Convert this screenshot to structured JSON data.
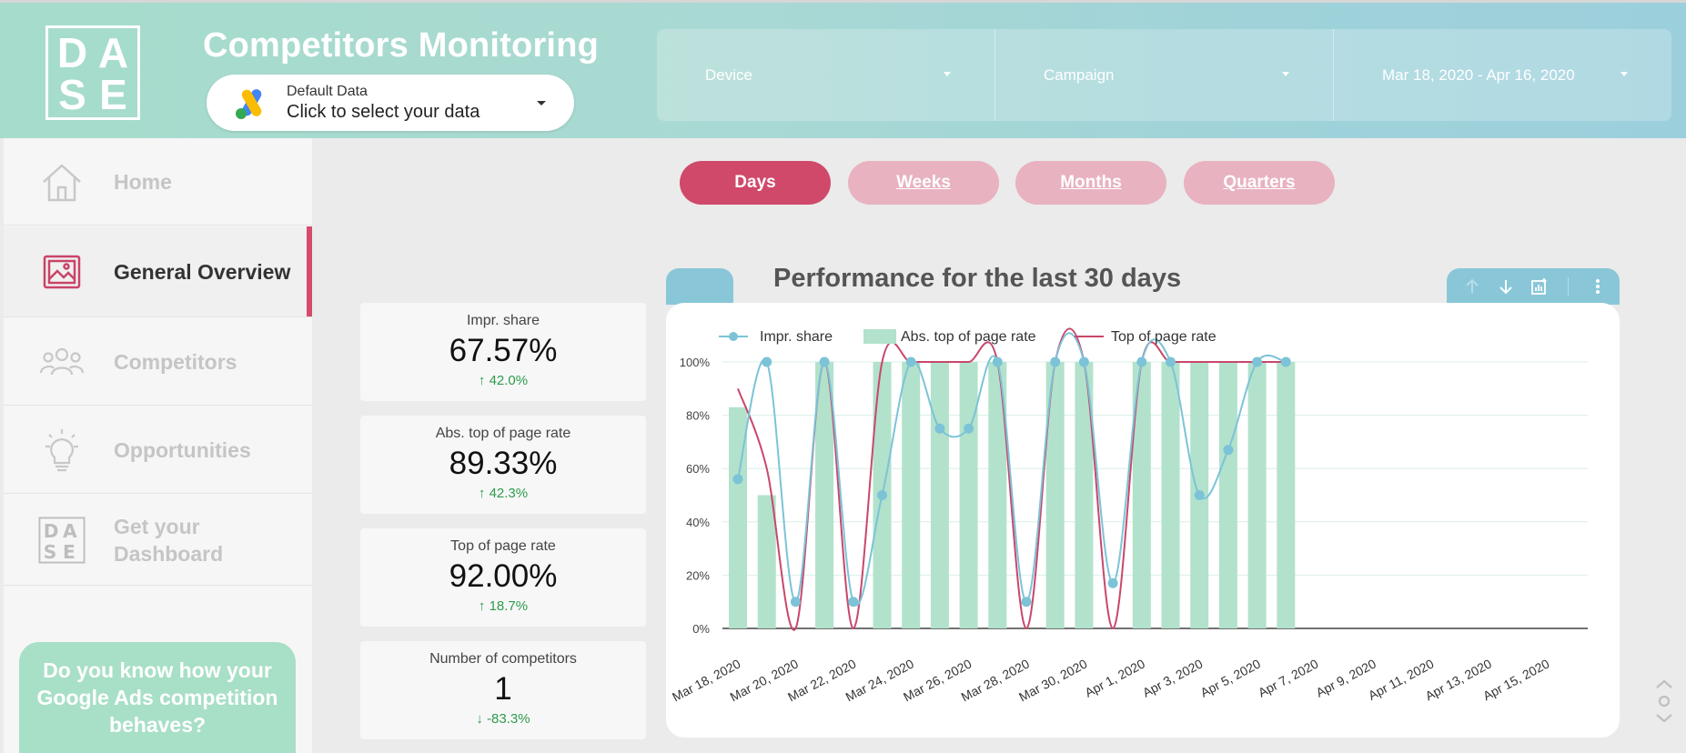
{
  "header": {
    "logo": [
      "D",
      "A",
      "S",
      "E"
    ],
    "title": "Competitors Monitoring",
    "data_selector": {
      "label": "Default Data",
      "value": "Click to select your data",
      "icon": "google-ads-icon"
    },
    "filters": [
      {
        "label": "Device"
      },
      {
        "label": "Campaign"
      },
      {
        "label": "Mar 18, 2020 - Apr 16, 2020"
      }
    ]
  },
  "sidebar": {
    "items": [
      {
        "label": "Home",
        "icon": "home-icon"
      },
      {
        "label": "General Overview",
        "icon": "picture-icon",
        "active": true
      },
      {
        "label": "Competitors",
        "icon": "people-icon"
      },
      {
        "label": "Opportunities",
        "icon": "lightbulb-icon"
      },
      {
        "label": "Get your Dashboard",
        "icon": "dase-logo-icon"
      }
    ],
    "promo": "Do you know how your Google Ads competition behaves?"
  },
  "period_tabs": [
    {
      "label": "Days",
      "active": true
    },
    {
      "label": "Weeks"
    },
    {
      "label": "Months"
    },
    {
      "label": "Quarters"
    }
  ],
  "kpis": [
    {
      "label": "Impr. share",
      "value": "67.57%",
      "delta": "42.0%",
      "direction": "up"
    },
    {
      "label": "Abs. top of page rate",
      "value": "89.33%",
      "delta": "42.3%",
      "direction": "up"
    },
    {
      "label": "Top of page rate",
      "value": "92.00%",
      "delta": "18.7%",
      "direction": "up"
    },
    {
      "label": "Number of competitors",
      "value": "1",
      "delta": "-83.3%",
      "direction": "down"
    }
  ],
  "chart": {
    "title": "Performance for the last 30 days",
    "toolbar_icons": [
      "arrow-up-icon",
      "arrow-down-icon",
      "drill-icon",
      "more-vert-icon"
    ]
  },
  "colors": {
    "accent": "#d0496a",
    "bar": "#b2e2cb",
    "impr_line": "#7cc3d8",
    "top_line": "#c9476b"
  },
  "chart_data": {
    "type": "bar",
    "title": "Performance for the last 30 days",
    "legend_position": "top-left",
    "grid": true,
    "ylim": [
      0,
      100
    ],
    "y_ticks": [
      "0%",
      "20%",
      "40%",
      "60%",
      "80%",
      "100%"
    ],
    "x_tick_labels": [
      "Mar 18, 2020",
      "Mar 20, 2020",
      "Mar 22, 2020",
      "Mar 24, 2020",
      "Mar 26, 2020",
      "Mar 28, 2020",
      "Mar 30, 2020",
      "Apr 1, 2020",
      "Apr 3, 2020",
      "Apr 5, 2020",
      "Apr 7, 2020",
      "Apr 9, 2020",
      "Apr 11, 2020",
      "Apr 13, 2020",
      "Apr 15, 2020"
    ],
    "categories": [
      "Mar 18",
      "Mar 19",
      "Mar 20",
      "Mar 21",
      "Mar 22",
      "Mar 23",
      "Mar 24",
      "Mar 25",
      "Mar 26",
      "Mar 27",
      "Mar 28",
      "Mar 29",
      "Mar 30",
      "Mar 31",
      "Apr 1",
      "Apr 2",
      "Apr 3",
      "Apr 4",
      "Apr 5",
      "Apr 6",
      "Apr 7",
      "Apr 8",
      "Apr 9",
      "Apr 10",
      "Apr 11",
      "Apr 12",
      "Apr 13",
      "Apr 14",
      "Apr 15",
      "Apr 16"
    ],
    "series": [
      {
        "name": "Abs. top of page rate",
        "kind": "bar",
        "values": [
          83,
          50,
          0,
          100,
          0,
          100,
          100,
          100,
          100,
          100,
          0,
          100,
          100,
          0,
          100,
          100,
          100,
          100,
          100,
          100,
          null,
          null,
          null,
          null,
          null,
          null,
          null,
          null,
          null,
          null
        ]
      },
      {
        "name": "Impr. share",
        "kind": "line-points",
        "values": [
          56,
          100,
          10,
          100,
          10,
          50,
          100,
          75,
          75,
          100,
          10,
          100,
          100,
          17,
          100,
          100,
          50,
          67,
          100,
          100,
          null,
          null,
          null,
          null,
          null,
          null,
          null,
          null,
          null,
          null
        ]
      },
      {
        "name": "Top of page rate",
        "kind": "line",
        "values": [
          90,
          60,
          0,
          100,
          0,
          100,
          100,
          100,
          100,
          100,
          0,
          100,
          100,
          0,
          100,
          100,
          100,
          100,
          100,
          100,
          null,
          null,
          null,
          null,
          null,
          null,
          null,
          null,
          null,
          null
        ]
      }
    ]
  }
}
